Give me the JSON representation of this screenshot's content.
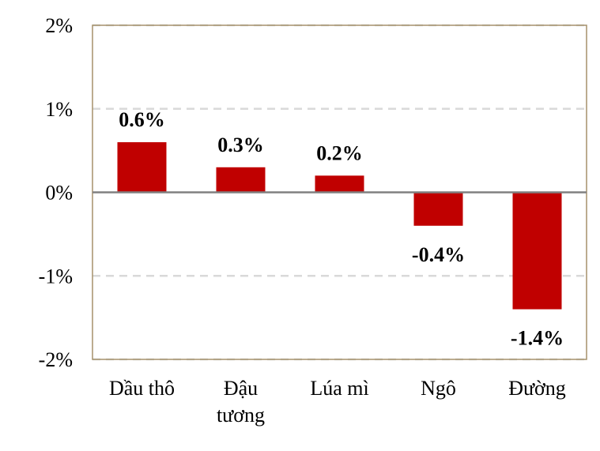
{
  "chart_data": {
    "type": "bar",
    "title": "",
    "xlabel": "",
    "ylabel": "",
    "categories": [
      [
        "Dầu thô"
      ],
      [
        "Đậu",
        "tương"
      ],
      [
        "Lúa mì"
      ],
      [
        "Ngô"
      ],
      [
        "Đường"
      ]
    ],
    "values": [
      0.6,
      0.3,
      0.2,
      -0.4,
      -1.4
    ],
    "data_labels": [
      "0.6%",
      "0.3%",
      "0.2%",
      "-0.4%",
      "-1.4%"
    ],
    "ylim": [
      -2,
      2
    ],
    "yticks": [
      2,
      1,
      0,
      -1,
      -2
    ],
    "ytick_labels": [
      "2%",
      "1%",
      "0%",
      "-1%",
      "-2%"
    ],
    "grid": true,
    "legend": "none",
    "colors": {
      "bar": "#c00000",
      "gridline": "#d9d9d9",
      "zero_line": "#808080",
      "plot_border": "#a5916b"
    }
  }
}
